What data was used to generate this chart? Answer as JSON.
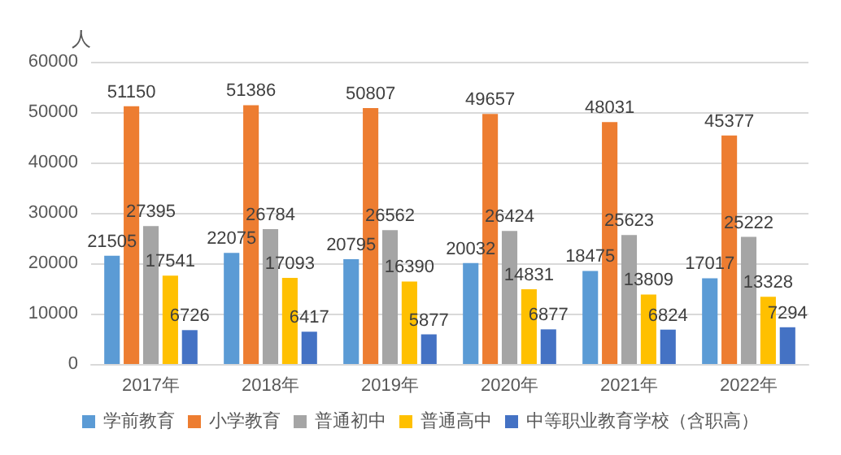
{
  "chart_data": {
    "type": "bar",
    "ylabel": "人",
    "categories": [
      "2017年",
      "2018年",
      "2019年",
      "2020年",
      "2021年",
      "2022年"
    ],
    "series": [
      {
        "name": "学前教育",
        "color": "#5b9bd5",
        "values": [
          21505,
          22075,
          20795,
          20032,
          18475,
          17017
        ]
      },
      {
        "name": "小学教育",
        "color": "#ed7d31",
        "values": [
          51150,
          51386,
          50807,
          49657,
          48031,
          45377
        ]
      },
      {
        "name": "普通初中",
        "color": "#a5a5a5",
        "values": [
          27395,
          26784,
          26562,
          26424,
          25623,
          25222
        ]
      },
      {
        "name": "普通高中",
        "color": "#ffc000",
        "values": [
          17541,
          17093,
          16390,
          14831,
          13809,
          13328
        ]
      },
      {
        "name": "中等职业教育学校（含职高）",
        "color": "#4472c4",
        "values": [
          6726,
          6417,
          5877,
          6877,
          6824,
          7294
        ]
      }
    ],
    "ylim": [
      0,
      60000
    ],
    "yticks": [
      0,
      10000,
      20000,
      30000,
      40000,
      50000,
      60000
    ],
    "grid": "y",
    "legend": "bottom",
    "data_labels": true
  }
}
